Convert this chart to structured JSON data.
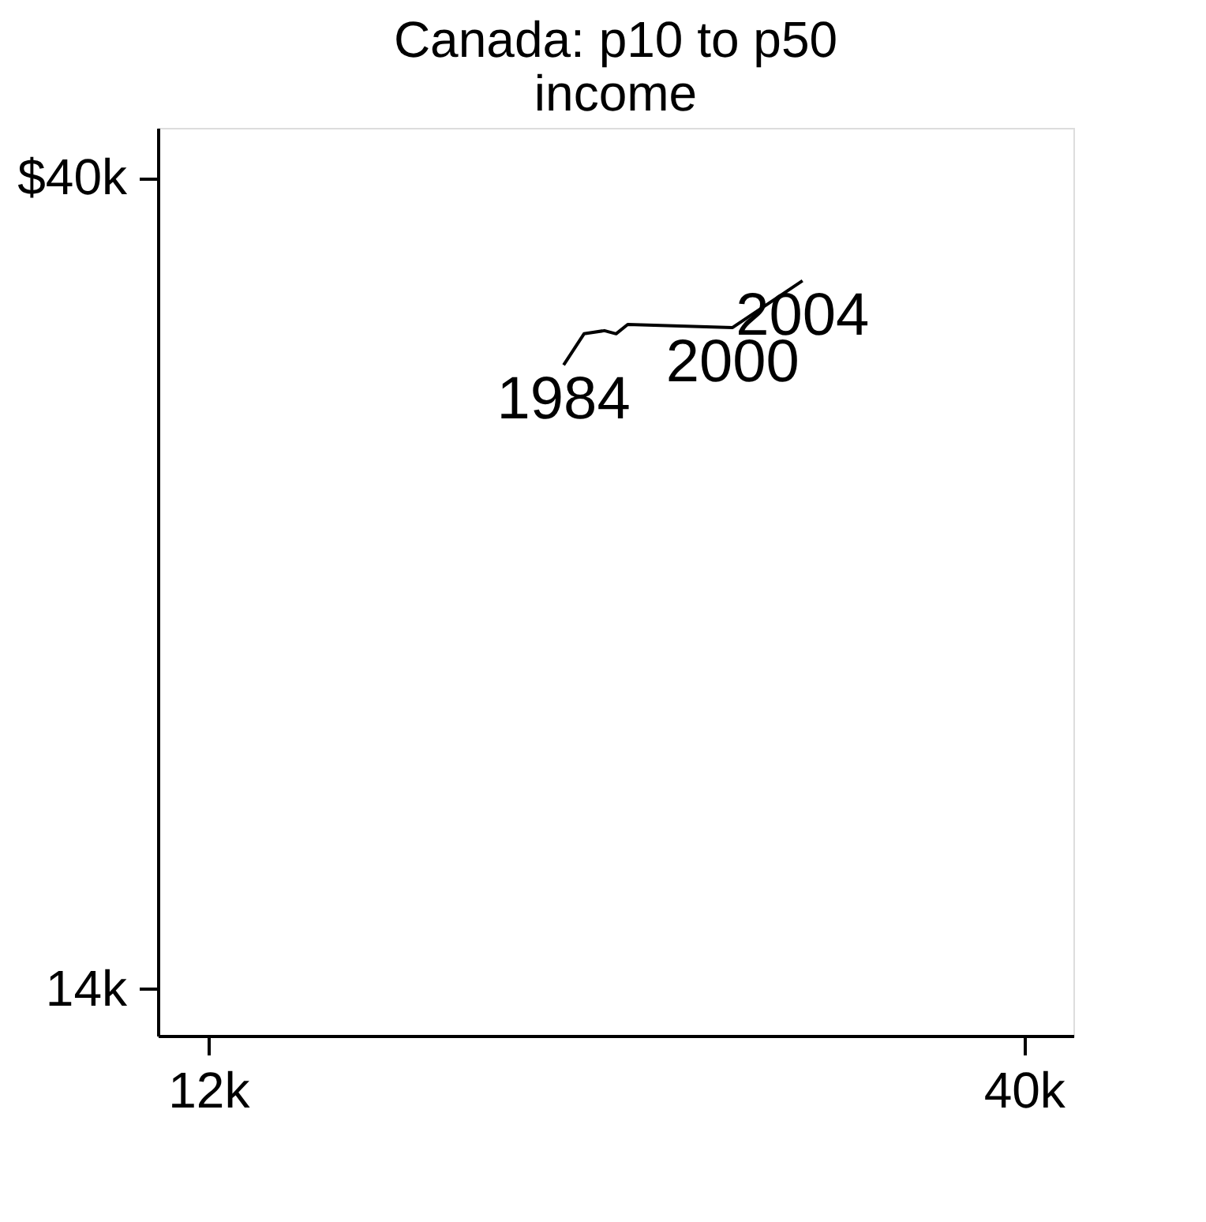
{
  "chart_data": {
    "type": "line",
    "title": "Canada: p10 to p50 income",
    "x": [
      24200,
      24900,
      25600,
      26000,
      26400,
      30000,
      32400
    ],
    "series": [
      {
        "color": "#000000",
        "values": [
          34000,
          35000,
          35100,
          35000,
          35300,
          35200,
          36700
        ]
      }
    ],
    "annotations": [
      {
        "text": "1984",
        "x": 24200,
        "y": 34000
      },
      {
        "text": "2000",
        "x": 30000,
        "y": 35200
      },
      {
        "text": "2004",
        "x": 32400,
        "y": 36700
      }
    ],
    "xlim": [
      10270,
      41700
    ],
    "ylim": [
      12500,
      41600
    ],
    "xticks": [
      {
        "value": 12000,
        "label": "12k"
      },
      {
        "value": 40000,
        "label": "40k"
      }
    ],
    "yticks": [
      {
        "value": 14000,
        "label": "14k"
      },
      {
        "value": 40000,
        "label": "$40k"
      }
    ],
    "marker": "none",
    "line_style": "solid",
    "grid": false,
    "legend": false
  }
}
